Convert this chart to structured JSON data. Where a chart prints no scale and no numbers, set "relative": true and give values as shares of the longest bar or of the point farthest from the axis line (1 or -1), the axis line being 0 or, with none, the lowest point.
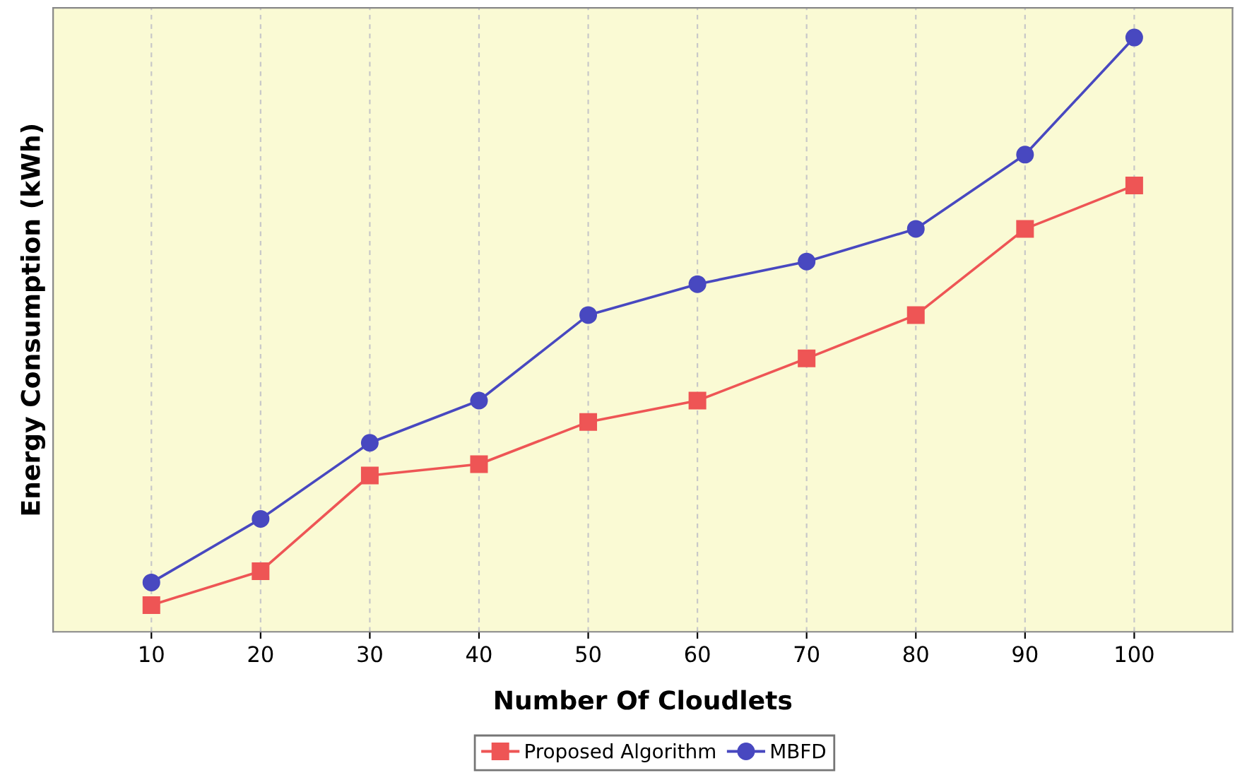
{
  "chart_data": {
    "type": "line",
    "xlabel": "Number Of Cloudlets",
    "ylabel": "Energy Consumption (kWh)",
    "x": [
      10,
      20,
      30,
      40,
      50,
      60,
      70,
      80,
      90,
      100
    ],
    "xlim": [
      1,
      109
    ],
    "xticks": [
      10,
      20,
      30,
      40,
      50,
      60,
      70,
      80,
      90,
      100
    ],
    "relative": true,
    "grid": "x",
    "legend": "bottom",
    "series": [
      {
        "name": "Proposed Algorithm",
        "color": "#ee5555",
        "marker": "square",
        "values": [
          0.045,
          0.102,
          0.263,
          0.282,
          0.353,
          0.389,
          0.46,
          0.533,
          0.678,
          0.751
        ]
      },
      {
        "name": "MBFD",
        "color": "#4848c0",
        "marker": "circle",
        "values": [
          0.083,
          0.19,
          0.318,
          0.389,
          0.533,
          0.585,
          0.623,
          0.678,
          0.803,
          1.0
        ]
      }
    ]
  }
}
